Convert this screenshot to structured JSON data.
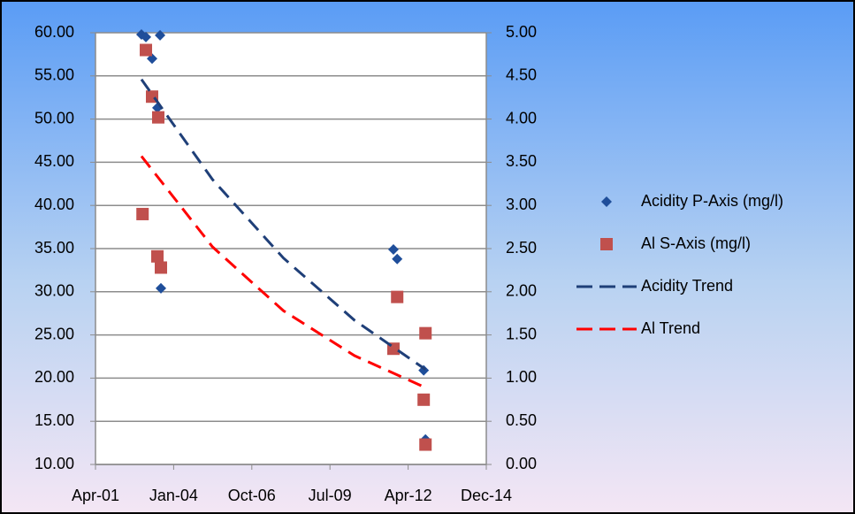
{
  "chart_data": {
    "type": "scatter",
    "xlim": [
      37000,
      42000
    ],
    "xticks": [
      {
        "value": 37000,
        "label": "Apr-01"
      },
      {
        "value": 38000,
        "label": "Jan-04"
      },
      {
        "value": 39000,
        "label": "Oct-06"
      },
      {
        "value": 40000,
        "label": "Jul-09"
      },
      {
        "value": 41000,
        "label": "Apr-12"
      },
      {
        "value": 42000,
        "label": "Dec-14"
      }
    ],
    "ylim": [
      10,
      60
    ],
    "yticks": [
      {
        "value": 10,
        "label": "10.00"
      },
      {
        "value": 15,
        "label": "15.00"
      },
      {
        "value": 20,
        "label": "20.00"
      },
      {
        "value": 25,
        "label": "25.00"
      },
      {
        "value": 30,
        "label": "30.00"
      },
      {
        "value": 35,
        "label": "35.00"
      },
      {
        "value": 40,
        "label": "40.00"
      },
      {
        "value": 45,
        "label": "45.00"
      },
      {
        "value": 50,
        "label": "50.00"
      },
      {
        "value": 55,
        "label": "55.00"
      },
      {
        "value": 60,
        "label": "60.00"
      }
    ],
    "y2lim": [
      0,
      5
    ],
    "y2ticks": [
      {
        "value": 0,
        "label": "0.00"
      },
      {
        "value": 0.5,
        "label": "0.50"
      },
      {
        "value": 1,
        "label": "1.00"
      },
      {
        "value": 1.5,
        "label": "1.50"
      },
      {
        "value": 2,
        "label": "2.00"
      },
      {
        "value": 2.5,
        "label": "2.50"
      },
      {
        "value": 3,
        "label": "3.00"
      },
      {
        "value": 3.5,
        "label": "3.50"
      },
      {
        "value": 4,
        "label": "4.00"
      },
      {
        "value": 4.5,
        "label": "4.50"
      },
      {
        "value": 5,
        "label": "5.00"
      }
    ],
    "grid": true,
    "legend": "right",
    "series": [
      {
        "name": "Acidity P-Axis (mg/l)",
        "color": "#1f4e9a",
        "marker": "diamond",
        "x": [
          37588,
          37645,
          37826,
          37724,
          37792,
          37837,
          40812,
          40860,
          41199,
          41222
        ],
        "values": [
          59.8,
          59.5,
          59.7,
          57.0,
          51.3,
          30.4,
          34.9,
          33.8,
          20.9,
          12.9
        ]
      },
      {
        "name": "Al S-Axis (mg/l)",
        "color": "#c0504d",
        "marker": "square",
        "axis": "y2",
        "x": [
          37645,
          37602,
          37724,
          37803,
          37792,
          37837,
          40860,
          40812,
          41222,
          41199,
          41222
        ],
        "values": [
          4.8,
          2.9,
          4.26,
          4.02,
          2.41,
          2.28,
          1.94,
          1.34,
          1.52,
          0.75,
          0.23
        ]
      },
      {
        "name": "Acidity Trend",
        "color": "#1f3f78",
        "marker": "dash",
        "x": [
          37588,
          38497,
          39405,
          40314,
          41222
        ],
        "values": [
          54.6,
          43.0,
          33.9,
          26.7,
          21.0
        ]
      },
      {
        "name": "Al Trend",
        "color": "#ff0000",
        "marker": "dash",
        "axis": "y2",
        "x": [
          37588,
          38497,
          39405,
          40314,
          41222
        ],
        "values": [
          3.57,
          2.52,
          1.78,
          1.26,
          0.89
        ]
      }
    ]
  }
}
